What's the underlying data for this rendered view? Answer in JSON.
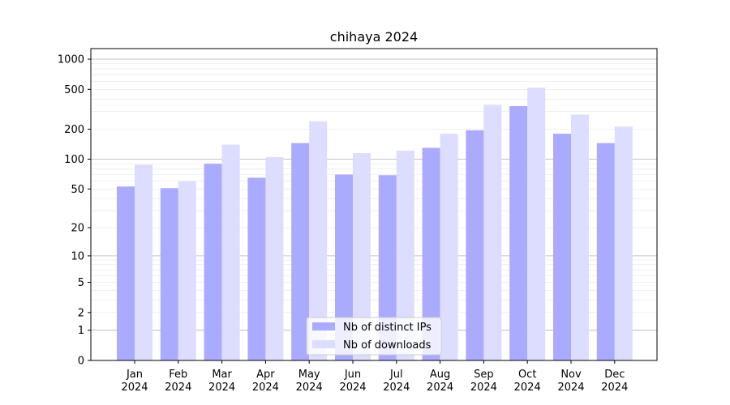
{
  "chart_data": {
    "type": "bar",
    "title": "chihaya 2024",
    "xlabel": "",
    "ylabel": "",
    "yscale": "symlog",
    "ylim": [
      0,
      1000
    ],
    "yticks": [
      0,
      1,
      2,
      5,
      10,
      20,
      50,
      100,
      200,
      500,
      1000
    ],
    "grid": true,
    "legend_position": "bottom-center",
    "categories": [
      {
        "month": "Jan",
        "year": "2024"
      },
      {
        "month": "Feb",
        "year": "2024"
      },
      {
        "month": "Mar",
        "year": "2024"
      },
      {
        "month": "Apr",
        "year": "2024"
      },
      {
        "month": "May",
        "year": "2024"
      },
      {
        "month": "Jun",
        "year": "2024"
      },
      {
        "month": "Jul",
        "year": "2024"
      },
      {
        "month": "Aug",
        "year": "2024"
      },
      {
        "month": "Sep",
        "year": "2024"
      },
      {
        "month": "Oct",
        "year": "2024"
      },
      {
        "month": "Nov",
        "year": "2024"
      },
      {
        "month": "Dec",
        "year": "2024"
      }
    ],
    "series": [
      {
        "name": "Nb of distinct IPs",
        "color": "#aaaaff",
        "values": [
          53,
          51,
          90,
          65,
          145,
          70,
          69,
          130,
          195,
          340,
          180,
          145
        ]
      },
      {
        "name": "Nb of downloads",
        "color": "#ddddff",
        "values": [
          88,
          60,
          140,
          105,
          240,
          115,
          122,
          180,
          350,
          520,
          280,
          212
        ]
      }
    ]
  }
}
